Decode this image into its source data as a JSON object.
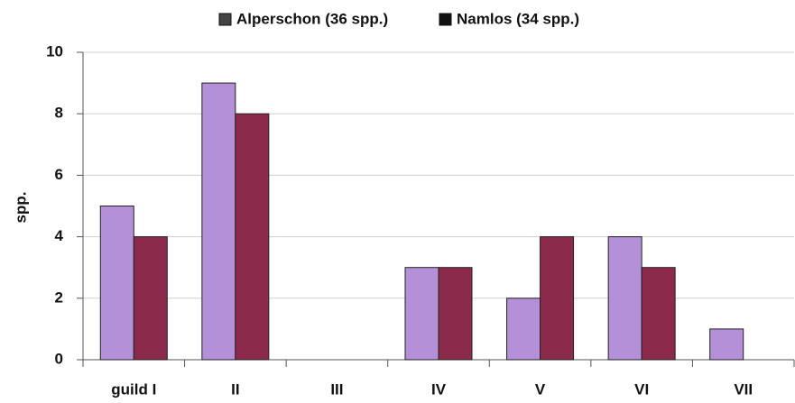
{
  "chart_data": {
    "type": "bar",
    "categories": [
      "guild I",
      "II",
      "III",
      "IV",
      "V",
      "VI",
      "VII"
    ],
    "series": [
      {
        "name": "Alperschon (36 spp.)",
        "color": "#b490d8",
        "values": [
          5,
          9,
          0,
          3,
          2,
          4,
          1
        ]
      },
      {
        "name": "Namlos (34 spp.)",
        "color": "#8c2a4c",
        "values": [
          4,
          8,
          0,
          3,
          4,
          3,
          0
        ]
      }
    ],
    "y_label": "spp.",
    "ylim": [
      0,
      10
    ],
    "yticks": [
      0,
      2,
      4,
      6,
      8,
      10
    ],
    "grid": true,
    "legend": "top"
  }
}
